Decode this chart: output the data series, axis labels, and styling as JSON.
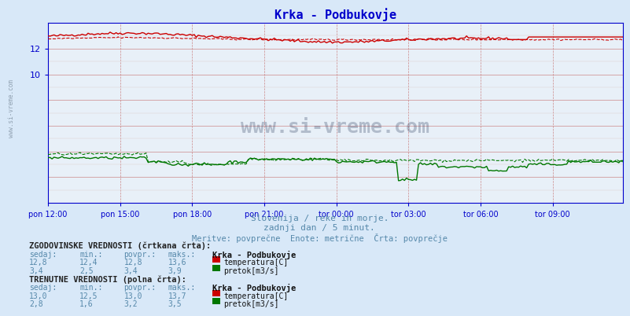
{
  "title": "Krka - Podbukovje",
  "title_color": "#0000cc",
  "bg_color": "#d8e8f8",
  "plot_bg_color": "#e8f0f8",
  "fig_size": [
    8.03,
    4.02
  ],
  "dpi": 100,
  "x_labels": [
    "pon 12:00",
    "pon 15:00",
    "pon 18:00",
    "pon 21:00",
    "tor 00:00",
    "tor 03:00",
    "tor 06:00",
    "tor 09:00"
  ],
  "x_ticks_pos": [
    0,
    36,
    72,
    108,
    144,
    180,
    216,
    252
  ],
  "n_points": 288,
  "temp_solid_color": "#cc0000",
  "temp_dashed_color": "#cc0000",
  "flow_solid_color": "#007700",
  "flow_dashed_color": "#007700",
  "grid_color_major": "#cc8888",
  "grid_color_minor": "#ddcccc",
  "axis_color": "#0000cc",
  "text_color": "#5588aa",
  "y_min": 0,
  "y_max": 14,
  "watermark": "www.si-vreme.com",
  "sub1": "Slovenija / reke in morje.",
  "sub2": "zadnji dan / 5 minut.",
  "sub3": "Meritve: povprečne  Enote: metrične  Črta: povprečje",
  "hist_label": "ZGODOVINSKE VREDNOSTI (črtkana črta):",
  "curr_label": "TRENUTNE VREDNOSTI (polna črta):",
  "col_sedaj": "sedaj:",
  "col_min": "min.:",
  "col_povpr": "povpr.:",
  "col_maks": "maks.:",
  "station": "Krka - Podbukovje",
  "hist_temp_sedaj": "12,8",
  "hist_temp_min": "12,4",
  "hist_temp_povpr": "12,8",
  "hist_temp_maks": "13,6",
  "hist_flow_sedaj": "3,4",
  "hist_flow_min": "2,5",
  "hist_flow_povpr": "3,4",
  "hist_flow_maks": "3,9",
  "curr_temp_sedaj": "13,0",
  "curr_temp_min": "12,5",
  "curr_temp_povpr": "13,0",
  "curr_temp_maks": "13,7",
  "curr_flow_sedaj": "2,8",
  "curr_flow_min": "1,6",
  "curr_flow_povpr": "3,2",
  "curr_flow_maks": "3,5"
}
